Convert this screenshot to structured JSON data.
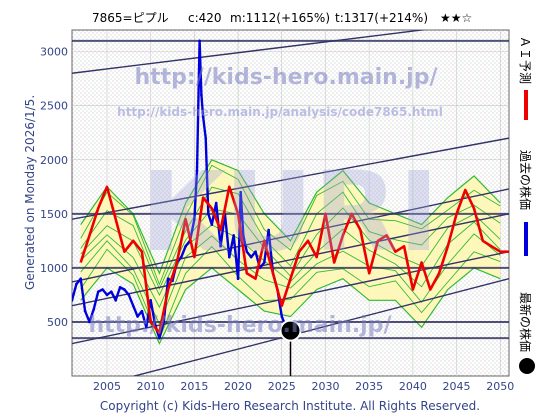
{
  "header": {
    "code_name": "7865=ピプル",
    "current": "c:420",
    "mid_target": "m:1112(+165%)",
    "top_target": "t:1317(+214%)",
    "stars": "★★☆"
  },
  "side_label": "Generated on Monday 2026/1/5.",
  "legend": {
    "ai": "ＡＩ予測",
    "past": "過去の株価",
    "latest": "最新の株価"
  },
  "watermark": {
    "url": "http://kids-hero.main.jp/",
    "analysis": "http://kids-hero.main.jp/analysis/code7865.html",
    "big": "KURI",
    "lower": "http://kids-hero.main.jp/"
  },
  "copyright": "Copyright (c) Kids-Hero Research Institute. All Rights Reserved.",
  "colors": {
    "ai": "#ee0000",
    "past": "#0000dd",
    "latest": "#000000",
    "band_fill": "#fff7b0",
    "band_line": "#33bb33",
    "channel": "#333366",
    "hline": "#2a2a5a",
    "grid": "#c8c8c8",
    "text": "#334488"
  },
  "chart_data": {
    "type": "line",
    "xlim": [
      2001,
      2051
    ],
    "ylim": [
      0,
      3200
    ],
    "xticks": [
      2005,
      2010,
      2015,
      2020,
      2025,
      2030,
      2035,
      2040,
      2045,
      2050
    ],
    "yticks": [
      500,
      1000,
      1500,
      2000,
      2500,
      3000
    ],
    "grid": true,
    "latest_point": {
      "x": 2026.0,
      "y": 420
    },
    "horizontal_lines": [
      350,
      500,
      1000,
      1500,
      3100
    ],
    "channel_lines": [
      {
        "x0": 2001,
        "y0": 2800,
        "x1": 2051,
        "y1": 3300
      },
      {
        "x0": 2001,
        "y0": 1450,
        "x1": 2051,
        "y1": 2200
      },
      {
        "x0": 2001,
        "y0": 870,
        "x1": 2051,
        "y1": 1730
      },
      {
        "x0": 2001,
        "y0": 650,
        "x1": 2051,
        "y1": 1500
      },
      {
        "x0": 2001,
        "y0": 300,
        "x1": 2051,
        "y1": 1150
      },
      {
        "x0": 2001,
        "y0": -150,
        "x1": 2051,
        "y1": 900
      }
    ],
    "series": [
      {
        "name": "ＡＩ予測",
        "x": [
          2002,
          2003,
          2004,
          2005,
          2006,
          2007,
          2008,
          2009,
          2010,
          2011,
          2012,
          2013,
          2014,
          2015,
          2016,
          2017,
          2018,
          2019,
          2020,
          2021,
          2022,
          2023,
          2024,
          2025,
          2026,
          2027,
          2028,
          2029,
          2030,
          2031,
          2032,
          2033,
          2034,
          2035,
          2036,
          2037,
          2038,
          2039,
          2040,
          2041,
          2042,
          2043,
          2044,
          2045,
          2046,
          2047,
          2048,
          2049,
          2050,
          2051
        ],
        "y": [
          1050,
          1300,
          1550,
          1750,
          1450,
          1150,
          1250,
          1150,
          500,
          400,
          800,
          1050,
          1450,
          1100,
          1650,
          1550,
          1350,
          1750,
          1500,
          950,
          900,
          1250,
          950,
          650,
          900,
          1150,
          1250,
          1100,
          1500,
          1050,
          1300,
          1500,
          1350,
          950,
          1250,
          1300,
          1150,
          1200,
          800,
          1050,
          800,
          950,
          1200,
          1500,
          1720,
          1550,
          1250,
          1200,
          1150,
          1150
        ]
      },
      {
        "name": "過去の株価",
        "x": [
          2001.0,
          2001.5,
          2002.0,
          2002.5,
          2003.0,
          2003.5,
          2004.0,
          2004.5,
          2005.0,
          2005.5,
          2006.0,
          2006.5,
          2007.0,
          2007.5,
          2008.0,
          2008.5,
          2009.0,
          2009.5,
          2010.0,
          2010.5,
          2011.0,
          2011.5,
          2012.0,
          2012.5,
          2013.0,
          2013.5,
          2014.0,
          2014.5,
          2015.0,
          2015.3,
          2015.6,
          2015.8,
          2016.0,
          2016.3,
          2016.6,
          2017.0,
          2017.5,
          2018.0,
          2018.5,
          2019.0,
          2019.5,
          2020.0,
          2020.3,
          2020.6,
          2021.0,
          2021.5,
          2022.0,
          2022.5,
          2023.0,
          2023.5,
          2024.0,
          2024.5,
          2025.0,
          2025.5,
          2026.0
        ],
        "y": [
          700,
          850,
          900,
          600,
          500,
          620,
          780,
          800,
          750,
          780,
          700,
          820,
          800,
          750,
          650,
          550,
          600,
          450,
          700,
          480,
          350,
          500,
          900,
          880,
          1050,
          1100,
          1200,
          1250,
          1450,
          1900,
          3100,
          2600,
          2400,
          2200,
          1500,
          1400,
          1600,
          1200,
          1500,
          1100,
          1300,
          900,
          1700,
          1300,
          1150,
          1100,
          1150,
          1000,
          1050,
          1350,
          950,
          800,
          550,
          450,
          420
        ]
      }
    ],
    "band": {
      "x": [
        2002,
        2005,
        2008,
        2011,
        2014,
        2017,
        2020,
        2023,
        2026,
        2029,
        2032,
        2035,
        2038,
        2041,
        2044,
        2047,
        2050
      ],
      "upper": [
        1400,
        1750,
        1500,
        950,
        1600,
        2000,
        1900,
        1500,
        1250,
        1700,
        1900,
        1600,
        1500,
        1400,
        1650,
        1850,
        1600
      ],
      "lower": [
        700,
        1000,
        850,
        300,
        800,
        1000,
        800,
        600,
        550,
        800,
        900,
        700,
        700,
        450,
        800,
        1000,
        900
      ]
    }
  }
}
